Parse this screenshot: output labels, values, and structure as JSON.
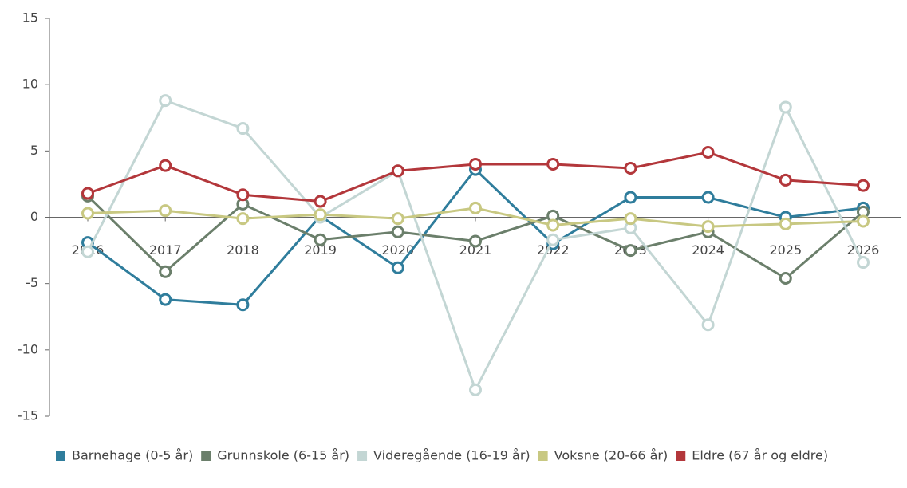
{
  "chart_data": {
    "type": "line",
    "categories": [
      "2016",
      "2017",
      "2018",
      "2019",
      "2020",
      "2021",
      "2022",
      "2023",
      "2024",
      "2025",
      "2026"
    ],
    "series": [
      {
        "name": "Barnehage (0-5 år)",
        "color": "#2f7d9c",
        "values": [
          -1.9,
          -6.2,
          -6.6,
          0.1,
          -3.8,
          3.6,
          -2.0,
          1.5,
          1.5,
          0.0,
          0.7
        ]
      },
      {
        "name": "Grunnskole (6-15 år)",
        "color": "#6b7f6b",
        "values": [
          1.6,
          -4.1,
          1.0,
          -1.7,
          -1.1,
          -1.8,
          0.1,
          -2.5,
          -1.1,
          -4.6,
          0.4
        ]
      },
      {
        "name": "Videregående (16-19 år)",
        "color": "#c3d6d4",
        "values": [
          -2.6,
          8.8,
          6.7,
          0.0,
          3.5,
          -13.0,
          -1.7,
          -0.8,
          -8.1,
          8.3,
          -3.4
        ]
      },
      {
        "name": "Voksne (20-66 år)",
        "color": "#c8c882",
        "values": [
          0.3,
          0.5,
          -0.1,
          0.2,
          -0.1,
          0.7,
          -0.6,
          -0.1,
          -0.7,
          -0.5,
          -0.3
        ]
      },
      {
        "name": "Eldre (67 år og eldre)",
        "color": "#b3373b",
        "values": [
          1.8,
          3.9,
          1.7,
          1.2,
          3.5,
          4.0,
          4.0,
          3.7,
          4.9,
          2.8,
          2.4
        ]
      }
    ],
    "ylim": [
      -15,
      15
    ],
    "yticks": [
      -15,
      -10,
      -5,
      0,
      5,
      10,
      15
    ]
  }
}
